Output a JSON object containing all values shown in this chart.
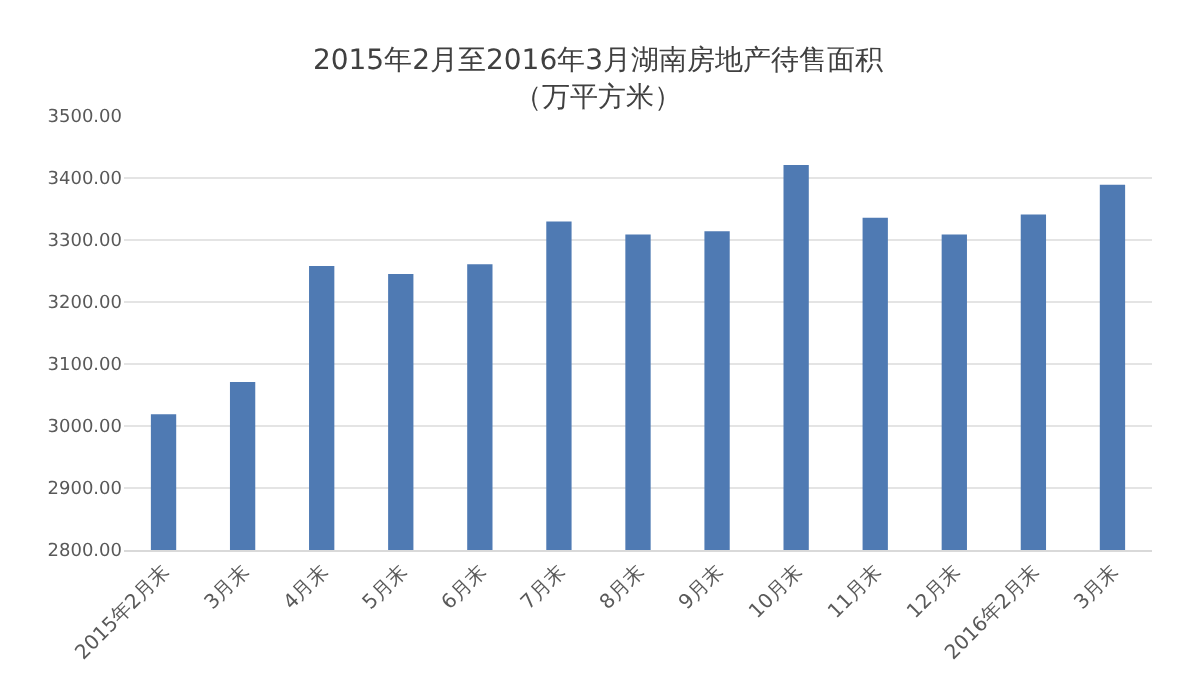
{
  "chart_data": {
    "type": "bar",
    "title": "2015年2月至2016年3月湖南房地产待售面积",
    "subtitle": "（万平方米）",
    "categories": [
      "2015年2月末",
      "3月末",
      "4月末",
      "5月末",
      "6月末",
      "7月末",
      "8月末",
      "9月末",
      "10月末",
      "11月末",
      "12月末",
      "2016年2月末",
      "3月末"
    ],
    "values": [
      3019,
      3071,
      3258,
      3245,
      3261,
      3330,
      3309,
      3314,
      3421,
      3336,
      3309,
      3341,
      3389
    ],
    "color": "#4f7ab3",
    "ylim": [
      2800,
      3500
    ],
    "yticks": [
      {
        "value": 2800,
        "label": "2800.00"
      },
      {
        "value": 2900,
        "label": "2900.00"
      },
      {
        "value": 3000,
        "label": "3000.00"
      },
      {
        "value": 3100,
        "label": "3100.00"
      },
      {
        "value": 3200,
        "label": "3200.00"
      },
      {
        "value": 3300,
        "label": "3300.00"
      },
      {
        "value": 3400,
        "label": "3400.00"
      },
      {
        "value": 3500,
        "label": "3500.00"
      }
    ],
    "grid": "y"
  }
}
